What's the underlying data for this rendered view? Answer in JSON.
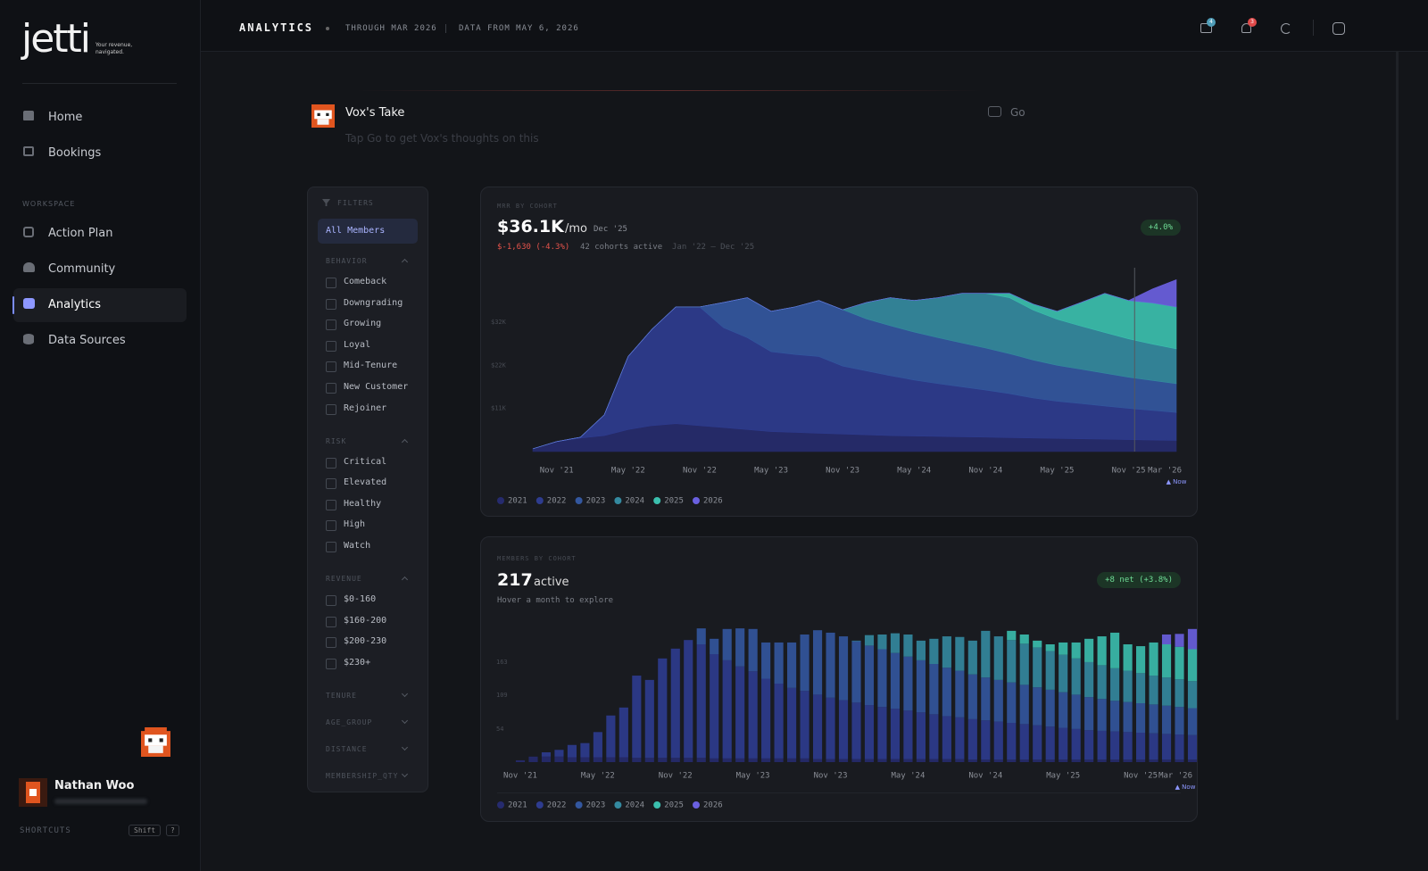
{
  "sidebar": {
    "logo": "jetti",
    "tagline": [
      "Your revenue,",
      "navigated."
    ],
    "nav": [
      "Home",
      "Bookings"
    ],
    "workspace_label": "WORKSPACE",
    "workspace_nav": [
      "Action Plan",
      "Community",
      "Analytics",
      "Data Sources"
    ],
    "user_name": "Nathan Woo",
    "shortcuts": "SHORTCUTS",
    "keys": [
      "Shift",
      "?"
    ]
  },
  "header": {
    "title": "ANALYTICS",
    "through": "THROUGH MAR 2026",
    "data_from": "DATA FROM MAY 6, 2026",
    "mail_badge": 4,
    "alert_badge": 3
  },
  "vox": {
    "title": "Vox's Take",
    "subtitle": "Tap Go to get Vox's thoughts on this",
    "button": "Go"
  },
  "filters": {
    "title": "FILTERS",
    "all": "All Members",
    "groups": [
      {
        "name": "BEHAVIOR",
        "options": [
          "Comeback",
          "Downgrading",
          "Growing",
          "Loyal",
          "Mid-Tenure",
          "New Customer",
          "Rejoiner"
        ]
      },
      {
        "name": "RISK",
        "options": [
          "Critical",
          "Elevated",
          "Healthy",
          "High",
          "Watch"
        ]
      },
      {
        "name": "REVENUE",
        "options": [
          "$0-160",
          "$160-200",
          "$200-230",
          "$230+"
        ]
      },
      {
        "name": "TENURE"
      },
      {
        "name": "AGE_GROUP"
      },
      {
        "name": "DISTANCE"
      },
      {
        "name": "MEMBERSHIP_QTY"
      }
    ]
  },
  "chart_data": [
    {
      "type": "area",
      "stacked": true,
      "label": "MRR BY COHORT",
      "value": "$36.1K",
      "unit": "/mo",
      "period": "Dec '25",
      "change": "$-1,630 (-4.3%)",
      "cohorts_active": "42 cohorts active",
      "range": "Jan '22 – Dec '25",
      "badge": "+4.0%",
      "annotation": "▲ Now",
      "categories": [
        null,
        "Nov '21",
        null,
        null,
        "May '22",
        null,
        null,
        "Nov '22",
        null,
        null,
        "May '23",
        null,
        null,
        "Nov '23",
        null,
        null,
        "May '24",
        null,
        null,
        "Nov '24",
        null,
        null,
        "May '25",
        null,
        null,
        "Nov '25",
        null,
        "Mar '26"
      ],
      "series": [
        {
          "name": "2021",
          "color": "#262b6e",
          "values": [
            700,
            2500,
            3400,
            4000,
            5500,
            6500,
            7000,
            6500,
            6000,
            5500,
            5000,
            4800,
            4600,
            4400,
            4200,
            4000,
            3900,
            3800,
            3700,
            3600,
            3500,
            3400,
            3300,
            3200,
            3100,
            3000,
            2900,
            2800
          ]
        },
        {
          "name": "2022",
          "color": "#2e3c8f",
          "values": [
            0,
            0,
            200,
            5200,
            18300,
            24100,
            29200,
            29700,
            25000,
            23000,
            20000,
            19500,
            19200,
            17000,
            16000,
            15000,
            14000,
            13200,
            12500,
            11800,
            11000,
            10000,
            9300,
            8800,
            8300,
            7800,
            7400,
            7000
          ]
        },
        {
          "name": "2023",
          "color": "#33579f",
          "values": [
            0,
            0,
            0,
            0,
            0,
            0,
            0,
            0,
            6300,
            10000,
            10100,
            11900,
            14000,
            14100,
            13000,
            12500,
            12000,
            11500,
            11000,
            10500,
            10000,
            9500,
            9000,
            8600,
            8200,
            7800,
            7500,
            7200
          ]
        },
        {
          "name": "2024",
          "color": "#348aa0",
          "values": [
            0,
            0,
            0,
            0,
            0,
            0,
            0,
            0,
            0,
            0,
            0,
            0,
            0,
            0,
            4100,
            7000,
            7900,
            10000,
            12400,
            13700,
            14000,
            12500,
            11500,
            10800,
            10200,
            9600,
            9100,
            8700
          ]
        },
        {
          "name": "2025",
          "color": "#3bbfae",
          "values": [
            0,
            0,
            0,
            0,
            0,
            0,
            0,
            0,
            0,
            0,
            0,
            0,
            0,
            0,
            0,
            0,
            0,
            0,
            0,
            0,
            1100,
            1500,
            2000,
            5900,
            9800,
            9600,
            10300,
            10500
          ]
        },
        {
          "name": "2026",
          "color": "#6a60e0",
          "values": [
            0,
            0,
            0,
            0,
            0,
            0,
            0,
            0,
            0,
            0,
            0,
            0,
            0,
            0,
            0,
            0,
            0,
            0,
            0,
            0,
            0,
            0,
            0,
            0,
            0,
            0,
            3500,
            6800
          ]
        }
      ],
      "ylim": [
        0,
        46000
      ],
      "yticks": [
        {
          "value": 10800,
          "label": "$11K"
        },
        {
          "value": 21600,
          "label": "$22K"
        },
        {
          "value": 32400,
          "label": "$32K"
        }
      ]
    },
    {
      "type": "bar",
      "stacked": true,
      "label": "MEMBERS BY COHORT",
      "value": 217,
      "unit": "active",
      "hint": "Hover a month to explore",
      "badge": "+8 net (+3.8%)",
      "annotation": "▲ Now",
      "categories": [
        "Nov '21",
        null,
        null,
        null,
        null,
        null,
        "May '22",
        null,
        null,
        null,
        null,
        null,
        "Nov '22",
        null,
        null,
        null,
        null,
        null,
        "May '23",
        null,
        null,
        null,
        null,
        null,
        "Nov '23",
        null,
        null,
        null,
        null,
        null,
        "May '24",
        null,
        null,
        null,
        null,
        null,
        "Nov '24",
        null,
        null,
        null,
        null,
        null,
        "May '25",
        null,
        null,
        null,
        null,
        null,
        "Nov '25",
        null,
        null,
        null,
        "Mar '26"
      ],
      "series": [
        {
          "name": "2021",
          "color": "#262b6e",
          "values": [
            3,
            9,
            9,
            9,
            8,
            8,
            8,
            8,
            8,
            7,
            7,
            7,
            7,
            7,
            7,
            6,
            6,
            6,
            6,
            6,
            6,
            6,
            6,
            5,
            5,
            5,
            5,
            5,
            5,
            5,
            5,
            5,
            5,
            5,
            5,
            4,
            4,
            4,
            4,
            4,
            4,
            4,
            4,
            4,
            4,
            4,
            4,
            4,
            4,
            4,
            4,
            4,
            4
          ]
        },
        {
          "name": "2022",
          "color": "#2e3c8f",
          "values": [
            0,
            0,
            7,
            11,
            20,
            23,
            41,
            68,
            81,
            134,
            127,
            162,
            178,
            192,
            185,
            170,
            160,
            150,
            142,
            130,
            122,
            115,
            110,
            105,
            100,
            96,
            92,
            88,
            85,
            82,
            79,
            76,
            73,
            70,
            68,
            66,
            64,
            62,
            60,
            58,
            56,
            54,
            52,
            50,
            48,
            47,
            46,
            45,
            44,
            43,
            42,
            41,
            40
          ]
        },
        {
          "name": "2023",
          "color": "#33579f",
          "values": [
            0,
            0,
            0,
            0,
            0,
            0,
            0,
            0,
            0,
            0,
            0,
            0,
            0,
            0,
            26,
            25,
            51,
            62,
            69,
            59,
            67,
            74,
            92,
            105,
            106,
            104,
            100,
            97,
            94,
            91,
            88,
            85,
            82,
            79,
            76,
            73,
            70,
            68,
            66,
            64,
            62,
            60,
            58,
            56,
            54,
            52,
            50,
            49,
            48,
            47,
            46,
            45,
            44
          ]
        },
        {
          "name": "2024",
          "color": "#348aa0",
          "values": [
            0,
            0,
            0,
            0,
            0,
            0,
            0,
            0,
            0,
            0,
            0,
            0,
            0,
            0,
            0,
            0,
            0,
            0,
            0,
            0,
            0,
            0,
            0,
            0,
            0,
            0,
            1,
            17,
            24,
            32,
            36,
            32,
            41,
            51,
            55,
            55,
            76,
            71,
            69,
            67,
            65,
            63,
            61,
            59,
            57,
            55,
            53,
            51,
            49,
            47,
            46,
            45,
            44
          ]
        },
        {
          "name": "2025",
          "color": "#3bbfae",
          "values": [
            0,
            0,
            0,
            0,
            0,
            0,
            0,
            0,
            0,
            0,
            0,
            0,
            0,
            0,
            0,
            0,
            0,
            0,
            0,
            0,
            0,
            0,
            0,
            0,
            0,
            0,
            0,
            0,
            0,
            0,
            0,
            0,
            0,
            0,
            0,
            0,
            0,
            0,
            15,
            15,
            11,
            11,
            20,
            26,
            38,
            47,
            58,
            43,
            44,
            54,
            54,
            53,
            52
          ]
        },
        {
          "name": "2026",
          "color": "#6a60e0",
          "values": [
            0,
            0,
            0,
            0,
            0,
            0,
            0,
            0,
            0,
            0,
            0,
            0,
            0,
            0,
            0,
            0,
            0,
            0,
            0,
            0,
            0,
            0,
            0,
            0,
            0,
            0,
            0,
            0,
            0,
            0,
            0,
            0,
            0,
            0,
            0,
            0,
            0,
            0,
            0,
            0,
            0,
            0,
            0,
            0,
            0,
            0,
            0,
            0,
            0,
            0,
            16,
            21,
            33
          ]
        }
      ],
      "ylim": [
        0,
        224
      ],
      "yticks": [
        54,
        109,
        163
      ]
    }
  ]
}
